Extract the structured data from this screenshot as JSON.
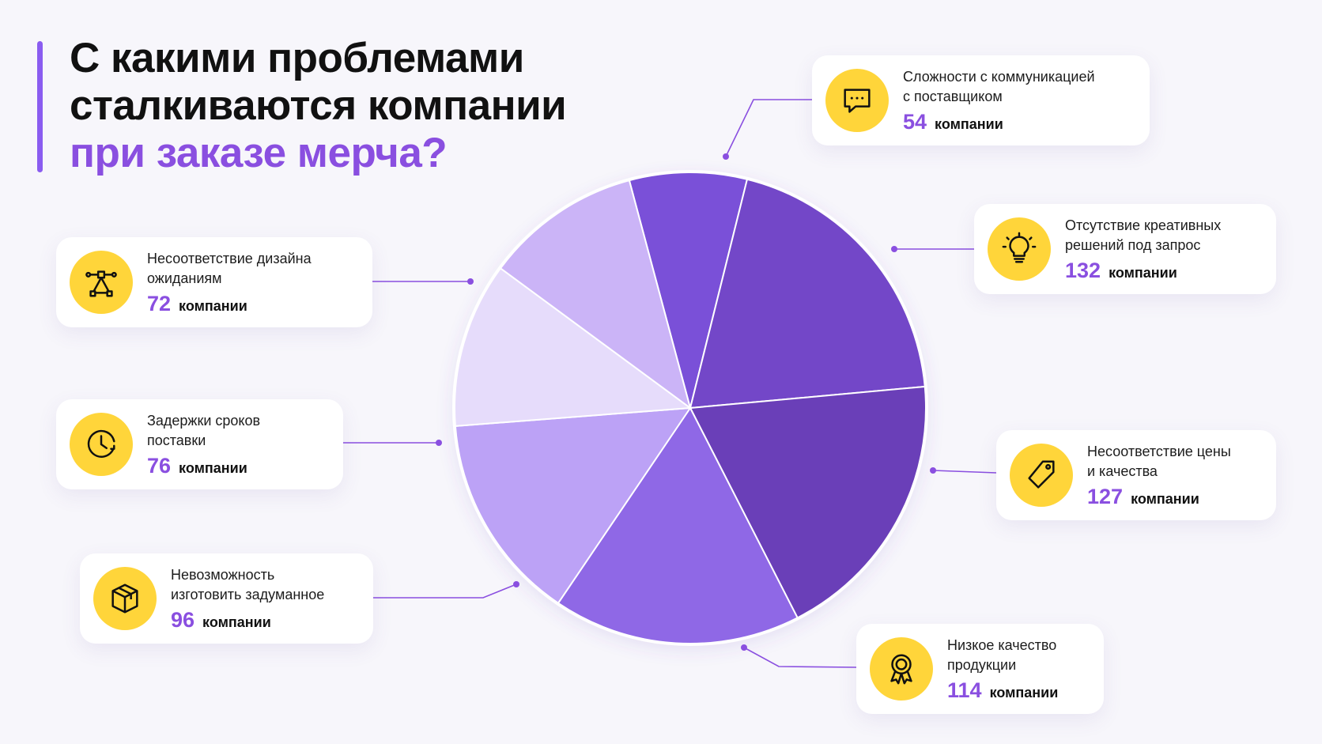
{
  "title": {
    "line1": "С какими проблемами",
    "line2": "сталкиваются компании",
    "line3": "при заказе мерча?"
  },
  "colors": {
    "accent": "#8a4fe0",
    "badge": "#ffd53a",
    "slices": [
      "#7a50d8",
      "#7347c8",
      "#6a3fb8",
      "#8f68e6",
      "#bca2f6",
      "#e6dcfb",
      "#cbb4f7"
    ]
  },
  "chart_data": {
    "type": "pie",
    "title": "",
    "unit": "компании",
    "slices": [
      {
        "label": "Сложности с коммуникацией с поставщиком",
        "value": 54,
        "icon": "message-bubble-icon"
      },
      {
        "label": "Отсутствие креативных решений под запрос",
        "value": 132,
        "icon": "lightbulb-icon"
      },
      {
        "label": "Несоответствие цены и качества",
        "value": 127,
        "icon": "price-tag-icon"
      },
      {
        "label": "Низкое качество продукции",
        "value": 114,
        "icon": "award-ribbon-icon"
      },
      {
        "label": "Невозможность изготовить задуманное",
        "value": 96,
        "icon": "box-icon"
      },
      {
        "label": "Задержки сроков поставки",
        "value": 76,
        "icon": "clock-icon"
      },
      {
        "label": "Несоответствие дизайна ожиданиям",
        "value": 72,
        "icon": "design-pen-icon"
      }
    ]
  },
  "cards": [
    {
      "id": "communication",
      "label_lines": [
        "Сложности с коммуникацией",
        "с поставщиком"
      ],
      "value": "54",
      "unit": "компании"
    },
    {
      "id": "creative",
      "label_lines": [
        "Отсутствие креативных",
        "решений под запрос"
      ],
      "value": "132",
      "unit": "компании"
    },
    {
      "id": "price-quality",
      "label_lines": [
        "Несоответствие цены",
        "и качества"
      ],
      "value": "127",
      "unit": "компании"
    },
    {
      "id": "low-quality",
      "label_lines": [
        "Низкое качество",
        "продукции"
      ],
      "value": "114",
      "unit": "компании"
    },
    {
      "id": "impossible",
      "label_lines": [
        "Невозможность",
        "изготовить задуманное"
      ],
      "value": "96",
      "unit": "компании"
    },
    {
      "id": "delays",
      "label_lines": [
        "Задержки сроков",
        "поставки"
      ],
      "value": "76",
      "unit": "компании"
    },
    {
      "id": "design",
      "label_lines": [
        "Несоответствие дизайна",
        "ожиданиям"
      ],
      "value": "72",
      "unit": "компании"
    }
  ]
}
